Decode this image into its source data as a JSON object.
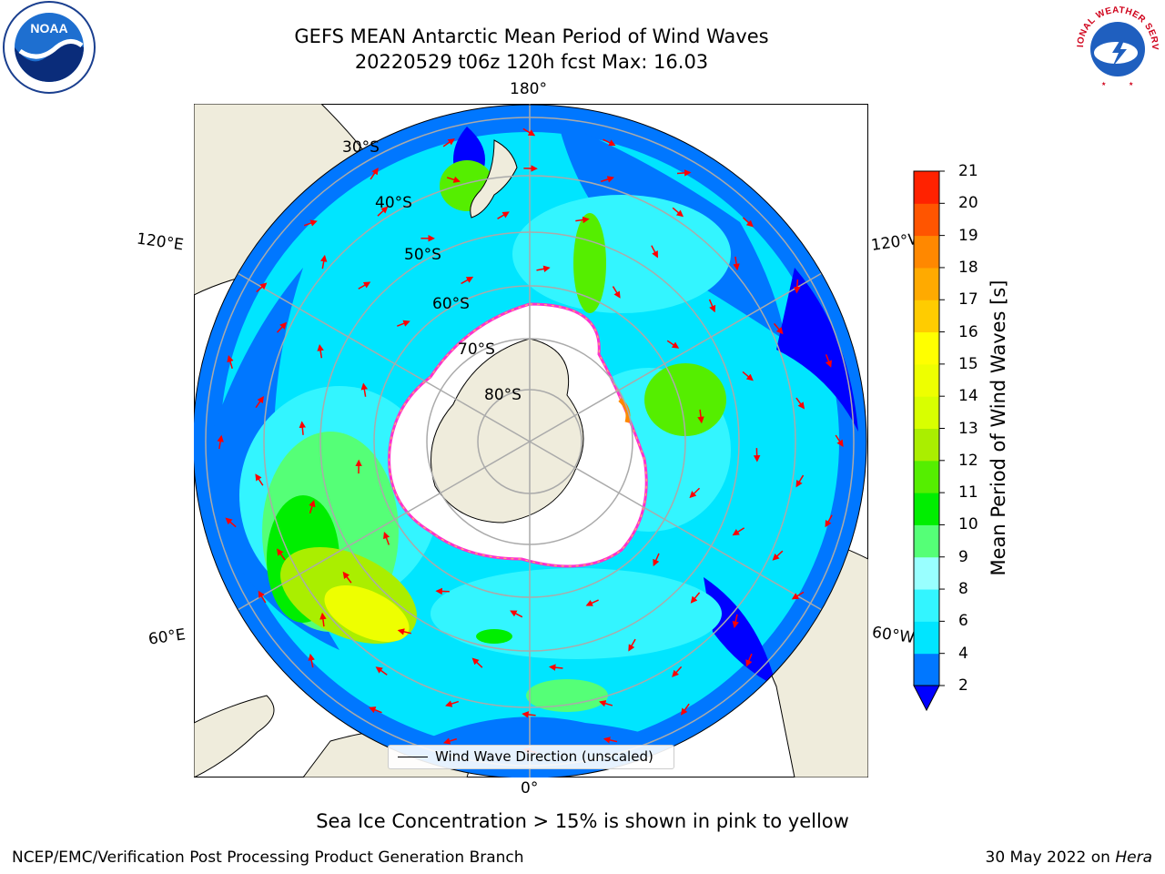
{
  "title": {
    "line1": "GEFS MEAN Antarctic Mean Period of Wind Waves",
    "line2": "20220529 t06z 120h fcst   Max: 16.03"
  },
  "logos": {
    "left": "NOAA",
    "right": "NATIONAL WEATHER SERVICE"
  },
  "map": {
    "projection": "south-polar-stereographic",
    "longitude_labels": {
      "top": "180°",
      "bottom": "0°",
      "left_upper": "120°E",
      "left_lower": "60°E",
      "right_upper": "120°W",
      "right_lower": "60°W"
    },
    "latitude_labels": [
      "30°S",
      "40°S",
      "50°S",
      "60°S",
      "70°S",
      "80°S"
    ],
    "legend_label": "Wind Wave Direction (unscaled)",
    "arrow_color": "#ff0000",
    "land_color": "#efecdc",
    "ice_edge_colors": [
      "#ff33cc",
      "#ffd24d"
    ]
  },
  "colorbar": {
    "label": "Mean Period of Wind Waves [s]",
    "ticks": [
      "2",
      "4",
      "6",
      "8",
      "9",
      "10",
      "11",
      "12",
      "13",
      "14",
      "15",
      "16",
      "17",
      "18",
      "19",
      "20",
      "21"
    ],
    "colors": [
      "#0077ff",
      "#00e5ff",
      "#33f5ff",
      "#99ffff",
      "#55ff77",
      "#00ee00",
      "#55ee00",
      "#aaee00",
      "#d8ff00",
      "#eeff00",
      "#ffff00",
      "#ffcc00",
      "#ffaa00",
      "#ff8800",
      "#ff5500",
      "#ff2200",
      "#ff0000"
    ],
    "under_color": "#0000ff"
  },
  "sea_ice_note": "Sea Ice Concentration > 15% is shown in pink to yellow",
  "footer": {
    "left": "NCEP/EMC/Verification Post Processing Product Generation Branch",
    "right_date": "30 May 2022 on ",
    "right_host": "Hera"
  }
}
